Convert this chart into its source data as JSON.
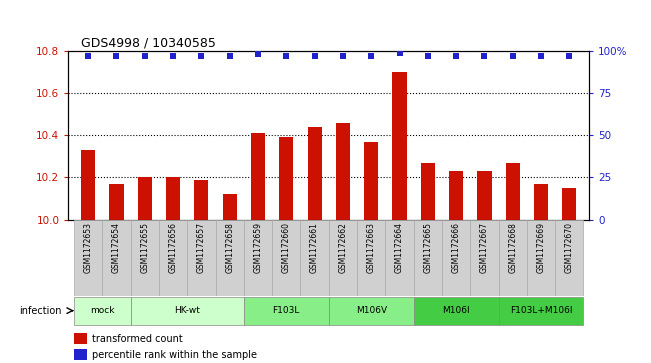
{
  "title": "GDS4998 / 10340585",
  "samples": [
    "GSM1172653",
    "GSM1172654",
    "GSM1172655",
    "GSM1172656",
    "GSM1172657",
    "GSM1172658",
    "GSM1172659",
    "GSM1172660",
    "GSM1172661",
    "GSM1172662",
    "GSM1172663",
    "GSM1172664",
    "GSM1172665",
    "GSM1172666",
    "GSM1172667",
    "GSM1172668",
    "GSM1172669",
    "GSM1172670"
  ],
  "bar_values": [
    10.33,
    10.17,
    10.2,
    10.2,
    10.19,
    10.12,
    10.41,
    10.39,
    10.44,
    10.46,
    10.37,
    10.7,
    10.27,
    10.23,
    10.23,
    10.27,
    10.17,
    10.15
  ],
  "dot_values": [
    97,
    97,
    97,
    97,
    97,
    97,
    98,
    97,
    97,
    97,
    97,
    99,
    97,
    97,
    97,
    97,
    97,
    97
  ],
  "ylim_left": [
    10.0,
    10.8
  ],
  "ylim_right": [
    0,
    100
  ],
  "yticks_left": [
    10.0,
    10.2,
    10.4,
    10.6,
    10.8
  ],
  "yticks_right": [
    0,
    25,
    50,
    75,
    100
  ],
  "bar_color": "#cc1100",
  "dot_color": "#2222cc",
  "group_spans": [
    {
      "label": "mock",
      "start": 0,
      "end": 1,
      "color": "#ccffcc"
    },
    {
      "label": "HK-wt",
      "start": 2,
      "end": 5,
      "color": "#ccffcc"
    },
    {
      "label": "F103L",
      "start": 6,
      "end": 8,
      "color": "#88ee88"
    },
    {
      "label": "M106V",
      "start": 9,
      "end": 11,
      "color": "#88ee88"
    },
    {
      "label": "M106I",
      "start": 12,
      "end": 14,
      "color": "#44cc44"
    },
    {
      "label": "F103L+M106I",
      "start": 15,
      "end": 17,
      "color": "#44cc44"
    }
  ],
  "infection_label": "infection",
  "legend_bar_label": "transformed count",
  "legend_dot_label": "percentile rank within the sample",
  "bg_color": "#ffffff",
  "tick_color_left": "#cc1100",
  "tick_color_right": "#2222cc",
  "grid_color": "#000000",
  "sample_box_color": "#d0d0d0",
  "sample_box_edge": "#aaaaaa"
}
